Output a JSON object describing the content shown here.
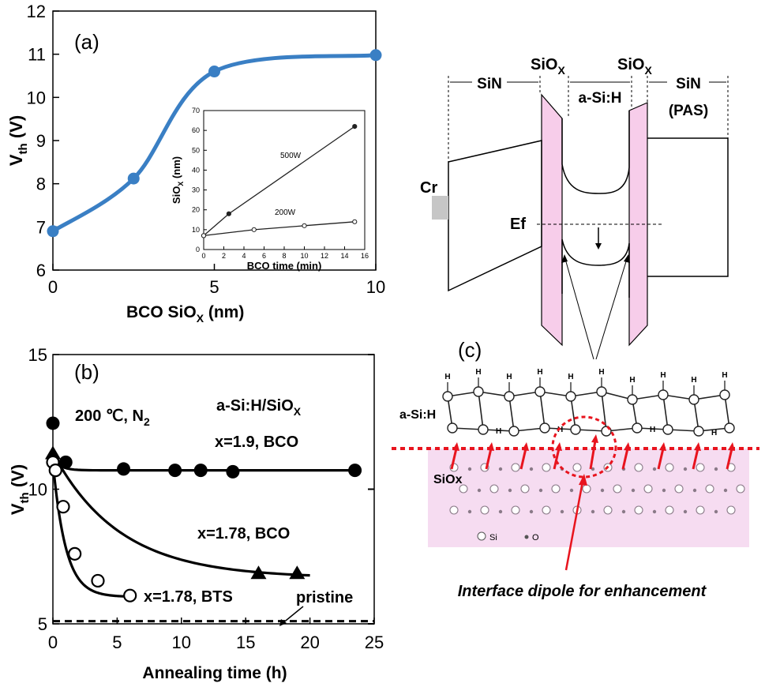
{
  "panels": {
    "a": {
      "label": "(a)"
    },
    "b": {
      "label": "(b)"
    },
    "c": {
      "label": "(c)"
    }
  },
  "chart_data": [
    {
      "id": "a",
      "type": "line",
      "xlabel": {
        "main": "BCO SiO",
        "sub": "X",
        "tail": " (nm)"
      },
      "ylabel": {
        "main": "V",
        "sub": "th",
        "tail": " (V)"
      },
      "xlim": [
        0,
        10
      ],
      "ylim": [
        6,
        12
      ],
      "xticks": [
        0,
        5,
        10
      ],
      "yticks": [
        6,
        7,
        8,
        9,
        10,
        11,
        12
      ],
      "color": "#3a7fc4",
      "x": [
        0,
        2.5,
        5,
        10
      ],
      "y": [
        6.9,
        8.12,
        10.6,
        10.98
      ]
    },
    {
      "id": "a-inset",
      "type": "line",
      "xlabel": "BCO time (min)",
      "ylabel": {
        "main": "SiO",
        "sub": "X",
        "tail": " (nm)"
      },
      "xlim": [
        0,
        16
      ],
      "ylim": [
        0,
        70
      ],
      "xticks": [
        0,
        2,
        4,
        6,
        8,
        10,
        12,
        14,
        16
      ],
      "yticks": [
        0,
        10,
        20,
        30,
        40,
        50,
        60,
        70
      ],
      "series": [
        {
          "name": "500W",
          "marker": "filled",
          "x": [
            0,
            2.5,
            15
          ],
          "y": [
            7,
            18,
            62
          ]
        },
        {
          "name": "200W",
          "marker": "open",
          "x": [
            0,
            5,
            10,
            15
          ],
          "y": [
            7,
            10,
            12,
            14
          ]
        }
      ]
    },
    {
      "id": "b",
      "type": "line",
      "xlabel": "Annealing time (h)",
      "ylabel": {
        "main": "V",
        "sub": "th",
        "tail": " (V)"
      },
      "xlim": [
        0,
        25
      ],
      "ylim": [
        5,
        15
      ],
      "xticks": [
        0,
        5,
        10,
        15,
        20,
        25
      ],
      "yticks": [
        5,
        10,
        15
      ],
      "series": [
        {
          "name": "x=1.9, BCO",
          "marker": "circle-filled",
          "x": [
            0,
            1,
            5.5,
            9.5,
            11.5,
            14,
            23.5
          ],
          "y": [
            12.45,
            11.0,
            10.75,
            10.7,
            10.7,
            10.65,
            10.7
          ]
        },
        {
          "name": "x=1.78, BCO",
          "marker": "triangle",
          "x": [
            0,
            16,
            19
          ],
          "y": [
            11.35,
            6.9,
            6.9
          ]
        },
        {
          "name": "x=1.78, BTS",
          "marker": "circle-open",
          "x": [
            0,
            0.2,
            0.8,
            1.7,
            3.5,
            6
          ],
          "y": [
            11.0,
            10.7,
            9.35,
            7.6,
            6.6,
            6.05
          ]
        }
      ],
      "pristine": 5.1
    }
  ],
  "annotations": {
    "condition": {
      "main": "200 ℃, N",
      "sub": "2"
    },
    "material": {
      "main": "a-Si:H/SiO",
      "sub": "X"
    },
    "s1": "x=1.9, BCO",
    "s2": "x=1.78, BCO",
    "s3": "x=1.78, BTS",
    "pristine": "pristine"
  },
  "band_diagram": {
    "sin_left": "SiN",
    "siox_left": {
      "main": "SiO",
      "sub": "X"
    },
    "asih": "a-Si:H",
    "siox_right": {
      "main": "SiO",
      "sub": "X"
    },
    "sin_right": "SiN",
    "pas": "(PAS)",
    "cr": "Cr",
    "ef": "Ef",
    "oxide_color": "#f7cdea"
  },
  "structure": {
    "asih": "a-Si:H",
    "siox": "SiOx",
    "atom": "H",
    "legend_si": "Si",
    "legend_o": "O",
    "caption": "Interface dipole for enhancement",
    "bg_color": "#f6dcf1",
    "accent": "#e8141e"
  }
}
